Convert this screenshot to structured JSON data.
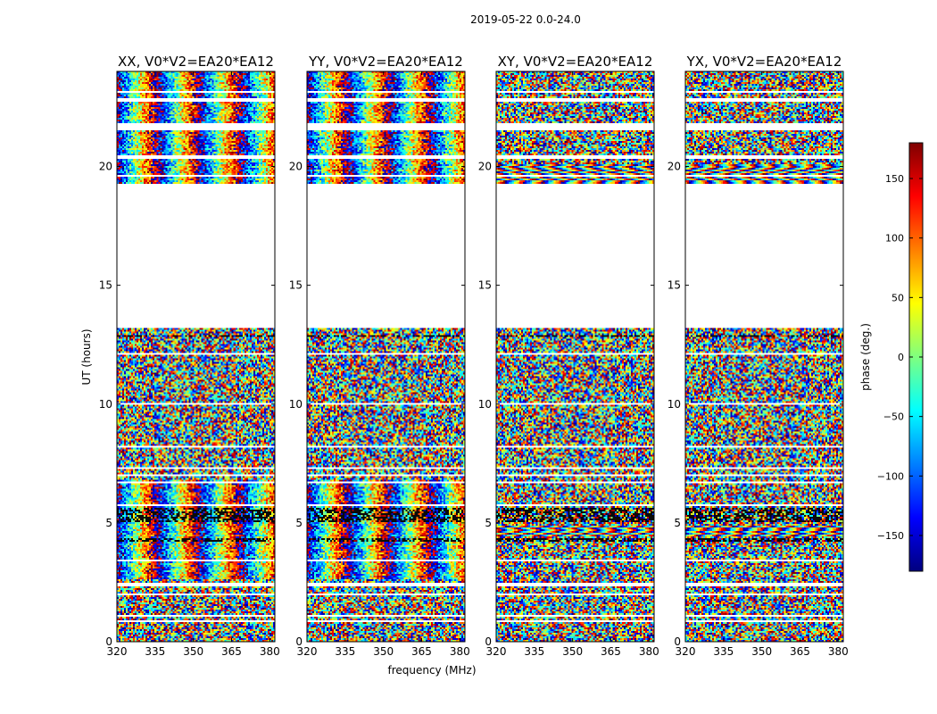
{
  "figure": {
    "suptitle": "2019-05-22 0.0-24.0",
    "xlabel": "frequency (MHz)",
    "ylabel": "UT (hours)",
    "colorbar_label": "phase (deg.)",
    "colorbar_ticks": [
      "150",
      "100",
      "50",
      "0",
      "−50",
      "−100",
      "−150"
    ],
    "colorbar_range": [
      -180,
      180
    ],
    "colormap": "jet",
    "colors": {
      "jet": [
        "#00007f",
        "#0000ff",
        "#007fff",
        "#00ffff",
        "#7fff7f",
        "#ffff00",
        "#ff7f00",
        "#ff0000",
        "#7f0000"
      ]
    }
  },
  "chart_data": [
    {
      "type": "heatmap",
      "title": "XX, V0*V2=EA20*EA12",
      "x_ticks": [
        "320",
        "335",
        "350",
        "365",
        "380"
      ],
      "y_ticks": [
        "0",
        "5",
        "10",
        "15",
        "20"
      ],
      "xlim": [
        320,
        382
      ],
      "ylim": [
        0,
        24
      ],
      "z_range": [
        -180,
        180
      ],
      "data_gap_hours": [
        13.2,
        19.3
      ],
      "coherent_fringes": true
    },
    {
      "type": "heatmap",
      "title": "YY, V0*V2=EA20*EA12",
      "x_ticks": [
        "320",
        "335",
        "350",
        "365",
        "380"
      ],
      "y_ticks": [
        "0",
        "5",
        "10",
        "15",
        "20"
      ],
      "xlim": [
        320,
        382
      ],
      "ylim": [
        0,
        24
      ],
      "z_range": [
        -180,
        180
      ],
      "data_gap_hours": [
        13.2,
        19.3
      ],
      "coherent_fringes": true
    },
    {
      "type": "heatmap",
      "title": "XY, V0*V2=EA20*EA12",
      "x_ticks": [
        "320",
        "335",
        "350",
        "365",
        "380"
      ],
      "y_ticks": [
        "0",
        "5",
        "10",
        "15",
        "20"
      ],
      "xlim": [
        320,
        382
      ],
      "ylim": [
        0,
        24
      ],
      "z_range": [
        -180,
        180
      ],
      "data_gap_hours": [
        13.2,
        19.3
      ],
      "coherent_fringes": false
    },
    {
      "type": "heatmap",
      "title": "YX, V0*V2=EA20*EA12",
      "x_ticks": [
        "320",
        "335",
        "350",
        "365",
        "380"
      ],
      "y_ticks": [
        "0",
        "5",
        "10",
        "15",
        "20"
      ],
      "xlim": [
        320,
        382
      ],
      "ylim": [
        0,
        24
      ],
      "z_range": [
        -180,
        180
      ],
      "data_gap_hours": [
        13.2,
        19.3
      ],
      "coherent_fringes": false
    }
  ]
}
